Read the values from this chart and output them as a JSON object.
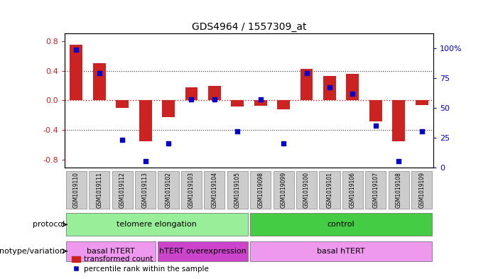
{
  "title": "GDS4964 / 1557309_at",
  "samples": [
    "GSM1019110",
    "GSM1019111",
    "GSM1019112",
    "GSM1019113",
    "GSM1019102",
    "GSM1019103",
    "GSM1019104",
    "GSM1019105",
    "GSM1019098",
    "GSM1019099",
    "GSM1019100",
    "GSM1019101",
    "GSM1019106",
    "GSM1019107",
    "GSM1019108",
    "GSM1019109"
  ],
  "bar_values": [
    0.75,
    0.5,
    -0.1,
    -0.55,
    -0.22,
    0.18,
    0.2,
    -0.08,
    -0.07,
    -0.12,
    0.42,
    0.33,
    0.36,
    -0.28,
    -0.55,
    -0.06
  ],
  "scatter_values": [
    99,
    79,
    23,
    5,
    20,
    57,
    57,
    30,
    57,
    20,
    79,
    67,
    62,
    35,
    5,
    30
  ],
  "ylim_left": [
    -0.9,
    0.9
  ],
  "ylim_right": [
    0,
    112.5
  ],
  "yticks_left": [
    -0.8,
    -0.4,
    0.0,
    0.4,
    0.8
  ],
  "yticks_right": [
    0,
    25,
    50,
    75,
    100
  ],
  "ytick_labels_right": [
    "0",
    "25",
    "50",
    "75",
    "100%"
  ],
  "bar_color": "#cc2222",
  "scatter_color": "#0000cc",
  "hline_color": "#cc2222",
  "dotted_color": "#333333",
  "bg_plot": "#ffffff",
  "protocol_labels": [
    "telomere elongation",
    "control"
  ],
  "protocol_ranges": [
    [
      0,
      8
    ],
    [
      8,
      16
    ]
  ],
  "protocol_colors": [
    "#99ee99",
    "#44cc44"
  ],
  "genotype_labels": [
    "basal hTERT",
    "hTERT overexpression",
    "basal hTERT"
  ],
  "genotype_ranges": [
    [
      0,
      4
    ],
    [
      4,
      8
    ],
    [
      8,
      16
    ]
  ],
  "genotype_colors": [
    "#ee99ee",
    "#cc44cc",
    "#ee99ee"
  ],
  "legend_bar_label": "transformed count",
  "legend_scatter_label": "percentile rank within the sample",
  "xlabel_protocol": "protocol",
  "xlabel_genotype": "genotype/variation",
  "tick_bg_color": "#cccccc",
  "right_axis_color": "#0000cc"
}
